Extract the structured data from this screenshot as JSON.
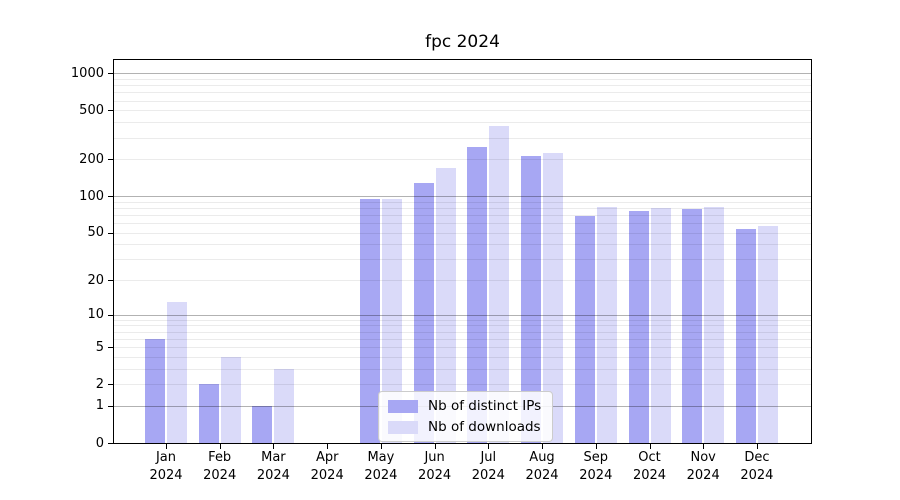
{
  "title": "fpc 2024",
  "chart_data": {
    "type": "bar",
    "title": "fpc 2024",
    "categories": [
      "Jan 2024",
      "Feb 2024",
      "Mar 2024",
      "Apr 2024",
      "May 2024",
      "Jun 2024",
      "Jul 2024",
      "Aug 2024",
      "Sep 2024",
      "Oct 2024",
      "Nov 2024",
      "Dec 2024"
    ],
    "series": [
      {
        "name": "Nb of distinct IPs",
        "color": "#a7a7f3",
        "values": [
          6,
          2,
          1,
          0,
          94,
          128,
          250,
          213,
          68,
          75,
          78,
          54
        ]
      },
      {
        "name": "Nb of downloads",
        "color": "#dadaf9",
        "values": [
          13,
          4,
          3,
          0,
          94,
          170,
          375,
          225,
          82,
          80,
          82,
          57
        ]
      }
    ],
    "yscale": "log1p",
    "yticks": [
      0,
      1,
      2,
      5,
      10,
      20,
      50,
      100,
      200,
      500,
      1000
    ],
    "ylim": [
      0,
      1283
    ],
    "xlabel": "",
    "ylabel": "",
    "grid": true,
    "legend_position": "lower center",
    "axis_color": "#000000",
    "major_grid_color": "rgba(0,0,0,0.30)",
    "minor_grid_color": "rgba(0,0,0,0.08)",
    "background_color": "#ffffff"
  }
}
